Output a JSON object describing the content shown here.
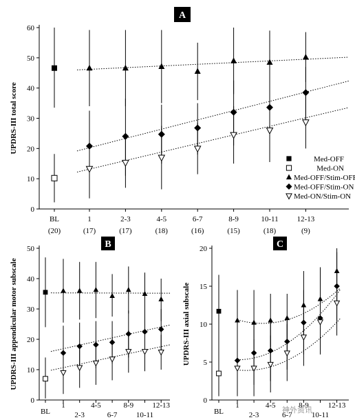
{
  "chart_data": [
    {
      "type": "scatter",
      "panel_label": "A",
      "ylabel": "UPDRS-III total score",
      "ylim": [
        0,
        60
      ],
      "yticks": [
        0,
        10,
        20,
        30,
        40,
        50,
        60
      ],
      "grid": false,
      "legend_position": "bottom-right",
      "categories": [
        {
          "label": "BL",
          "sub": "(20)"
        },
        {
          "label": "1",
          "sub": "(17)"
        },
        {
          "label": "2-3",
          "sub": "(17)"
        },
        {
          "label": "4-5",
          "sub": "(18)"
        },
        {
          "label": "6-7",
          "sub": "(16)"
        },
        {
          "label": "8-9",
          "sub": "(15)"
        },
        {
          "label": "10-11",
          "sub": "(18)"
        },
        {
          "label": "12-13",
          "sub": "(9)"
        }
      ],
      "series": [
        {
          "name": "Med-OFF",
          "marker": "square-filled",
          "points": [
            {
              "x": "BL",
              "y": 46.6,
              "lo": 33.5,
              "hi": 60.0
            }
          ]
        },
        {
          "name": "Med-ON",
          "marker": "square-open",
          "points": [
            {
              "x": "BL",
              "y": 10.2,
              "lo": 2.2,
              "hi": 18.2
            }
          ]
        },
        {
          "name": "Med-OFF/Stim-OFF",
          "marker": "triangle-up-filled",
          "points": [
            {
              "x": "1",
              "y": 46.6,
              "lo": 34.0,
              "hi": 59.2
            },
            {
              "x": "2-3",
              "y": 46.6,
              "lo": 34.0,
              "hi": 59.2
            },
            {
              "x": "4-5",
              "y": 47.1,
              "lo": 35.0,
              "hi": 59.2
            },
            {
              "x": "6-7",
              "y": 45.5,
              "lo": 36.0,
              "hi": 55.0
            },
            {
              "x": "8-9",
              "y": 49.0,
              "lo": 38.0,
              "hi": 60.0
            },
            {
              "x": "10-11",
              "y": 48.5,
              "lo": 38.0,
              "hi": 59.0
            },
            {
              "x": "12-13",
              "y": 50.2,
              "lo": 42.0,
              "hi": 58.5
            }
          ]
        },
        {
          "name": "Med-OFF/Stim-ON",
          "marker": "diamond-filled",
          "points": [
            {
              "x": "1",
              "y": 20.8,
              "lo": 9.5,
              "hi": 32.5
            },
            {
              "x": "2-3",
              "y": 24.0,
              "lo": 11.0,
              "hi": 36.5
            },
            {
              "x": "4-5",
              "y": 24.7,
              "lo": 15.0,
              "hi": 34.5
            },
            {
              "x": "6-7",
              "y": 26.8,
              "lo": 18.0,
              "hi": 35.0
            },
            {
              "x": "8-9",
              "y": 32.0,
              "lo": 21.0,
              "hi": 42.5
            },
            {
              "x": "10-11",
              "y": 33.6,
              "lo": 23.5,
              "hi": 43.5
            },
            {
              "x": "12-13",
              "y": 38.5,
              "lo": 30.0,
              "hi": 47.0
            }
          ]
        },
        {
          "name": "Med-ON/Stim-ON",
          "marker": "triangle-down-open",
          "points": [
            {
              "x": "1",
              "y": 13.3,
              "lo": 3.5,
              "hi": 24.0
            },
            {
              "x": "2-3",
              "y": 15.3,
              "lo": 7.0,
              "hi": 24.0
            },
            {
              "x": "4-5",
              "y": 17.0,
              "lo": 6.5,
              "hi": 27.5
            },
            {
              "x": "6-7",
              "y": 20.0,
              "lo": 11.5,
              "hi": 28.5
            },
            {
              "x": "8-9",
              "y": 24.5,
              "lo": 15.0,
              "hi": 34.0
            },
            {
              "x": "10-11",
              "y": 26.0,
              "lo": 15.5,
              "hi": 36.5
            },
            {
              "x": "12-13",
              "y": 28.7,
              "lo": 20.0,
              "hi": 37.5
            }
          ]
        }
      ],
      "trendlines": [
        {
          "series": "Med-OFF/Stim-OFF",
          "from": [
            1,
            46.0
          ],
          "to": [
            7,
            49.5
          ]
        },
        {
          "series": "Med-OFF/Stim-ON",
          "from": [
            1,
            19.2
          ],
          "to": [
            7,
            38.5
          ]
        },
        {
          "series": "Med-ON/Stim-ON",
          "from": [
            1,
            12.2
          ],
          "to": [
            7,
            30.0
          ]
        }
      ]
    },
    {
      "type": "scatter",
      "panel_label": "B",
      "ylabel": "UPDRS-III appendicular motor subscale",
      "ylim": [
        0,
        50
      ],
      "yticks": [
        0,
        10,
        20,
        30,
        40,
        50
      ],
      "grid": false,
      "categories": [
        "BL",
        "1",
        "2-3",
        "4-5",
        "6-7",
        "8-9",
        "10-11",
        "12-13"
      ],
      "series": [
        {
          "name": "Med-OFF",
          "marker": "square-filled",
          "points": [
            {
              "x": "BL",
              "y": 35.5,
              "lo": 24.0,
              "hi": 47.0
            }
          ]
        },
        {
          "name": "Med-ON",
          "marker": "square-open",
          "points": [
            {
              "x": "BL",
              "y": 7.0,
              "lo": 0.5,
              "hi": 14.0
            }
          ]
        },
        {
          "name": "Med-OFF/Stim-OFF",
          "marker": "triangle-up-filled",
          "points": [
            {
              "x": "1",
              "y": 36.0,
              "lo": 25.5,
              "hi": 46.5
            },
            {
              "x": "2-3",
              "y": 36.0,
              "lo": 26.5,
              "hi": 45.5
            },
            {
              "x": "4-5",
              "y": 36.3,
              "lo": 27.0,
              "hi": 45.5
            },
            {
              "x": "6-7",
              "y": 34.3,
              "lo": 27.5,
              "hi": 41.5
            },
            {
              "x": "8-9",
              "y": 36.3,
              "lo": 28.5,
              "hi": 44.0
            },
            {
              "x": "10-11",
              "y": 35.0,
              "lo": 28.0,
              "hi": 42.0
            },
            {
              "x": "12-13",
              "y": 33.2,
              "lo": 26.0,
              "hi": 40.0
            }
          ]
        },
        {
          "name": "Med-OFF/Stim-ON",
          "marker": "diamond-filled",
          "points": [
            {
              "x": "1",
              "y": 15.5,
              "lo": 7.0,
              "hi": 24.5
            },
            {
              "x": "2-3",
              "y": 17.7,
              "lo": 10.0,
              "hi": 25.5
            },
            {
              "x": "4-5",
              "y": 18.2,
              "lo": 10.5,
              "hi": 26.0
            },
            {
              "x": "6-7",
              "y": 19.0,
              "lo": 12.0,
              "hi": 26.0
            },
            {
              "x": "8-9",
              "y": 21.8,
              "lo": 14.0,
              "hi": 29.5
            },
            {
              "x": "10-11",
              "y": 22.5,
              "lo": 15.0,
              "hi": 30.0
            },
            {
              "x": "12-13",
              "y": 23.3,
              "lo": 16.5,
              "hi": 30.0
            }
          ]
        },
        {
          "name": "Med-ON/Stim-ON",
          "marker": "triangle-down-open",
          "points": [
            {
              "x": "1",
              "y": 9.0,
              "lo": 2.0,
              "hi": 16.5
            },
            {
              "x": "2-3",
              "y": 10.7,
              "lo": 4.0,
              "hi": 17.5
            },
            {
              "x": "4-5",
              "y": 12.2,
              "lo": 5.0,
              "hi": 19.5
            },
            {
              "x": "6-7",
              "y": 13.5,
              "lo": 6.5,
              "hi": 20.5
            },
            {
              "x": "8-9",
              "y": 16.0,
              "lo": 9.0,
              "hi": 23.0
            },
            {
              "x": "10-11",
              "y": 16.0,
              "lo": 9.5,
              "hi": 22.5
            },
            {
              "x": "12-13",
              "y": 15.8,
              "lo": 10.0,
              "hi": 21.5
            }
          ]
        }
      ],
      "trendlines": [
        {
          "series": "Med-OFF/Stim-OFF",
          "from": [
            1,
            35.3
          ],
          "to": [
            7,
            35.2
          ]
        },
        {
          "series": "Med-OFF/Stim-ON",
          "from": [
            1,
            16.0
          ],
          "to": [
            7,
            24.0
          ]
        },
        {
          "series": "Med-ON/Stim-ON",
          "from": [
            1,
            9.8
          ],
          "to": [
            7,
            17.5
          ]
        }
      ]
    },
    {
      "type": "scatter",
      "panel_label": "C",
      "ylabel": "UPDRS-III axial subscale",
      "ylim": [
        0,
        20
      ],
      "yticks": [
        0,
        5,
        10,
        15,
        20
      ],
      "grid": false,
      "categories": [
        "BL",
        "1",
        "2-3",
        "4-5",
        "6-7",
        "8-9",
        "10-11",
        "12-13"
      ],
      "series": [
        {
          "name": "Med-OFF",
          "marker": "square-filled",
          "points": [
            {
              "x": "BL",
              "y": 11.7,
              "lo": 7.0,
              "hi": 16.5
            }
          ]
        },
        {
          "name": "Med-ON",
          "marker": "square-open",
          "points": [
            {
              "x": "BL",
              "y": 3.5,
              "lo": 0.5,
              "hi": 7.0
            }
          ]
        },
        {
          "name": "Med-OFF/Stim-OFF",
          "marker": "triangle-up-filled",
          "points": [
            {
              "x": "1",
              "y": 10.5,
              "lo": 6.0,
              "hi": 14.5
            },
            {
              "x": "2-3",
              "y": 10.2,
              "lo": 6.0,
              "hi": 14.5
            },
            {
              "x": "4-5",
              "y": 10.5,
              "lo": 7.0,
              "hi": 14.0
            },
            {
              "x": "6-7",
              "y": 10.8,
              "lo": 8.0,
              "hi": 14.0
            },
            {
              "x": "8-9",
              "y": 12.5,
              "lo": 8.0,
              "hi": 17.0
            },
            {
              "x": "10-11",
              "y": 13.3,
              "lo": 9.0,
              "hi": 17.5
            },
            {
              "x": "12-13",
              "y": 17.0,
              "lo": 12.5,
              "hi": 20.0
            }
          ]
        },
        {
          "name": "Med-OFF/Stim-ON",
          "marker": "diamond-filled",
          "points": [
            {
              "x": "1",
              "y": 5.2,
              "lo": 1.0,
              "hi": 9.5
            },
            {
              "x": "2-3",
              "y": 6.2,
              "lo": 2.0,
              "hi": 10.5
            },
            {
              "x": "4-5",
              "y": 6.5,
              "lo": 2.5,
              "hi": 10.5
            },
            {
              "x": "6-7",
              "y": 7.7,
              "lo": 4.0,
              "hi": 11.0
            },
            {
              "x": "8-9",
              "y": 10.2,
              "lo": 6.0,
              "hi": 14.5
            },
            {
              "x": "10-11",
              "y": 10.8,
              "lo": 6.5,
              "hi": 15.0
            },
            {
              "x": "12-13",
              "y": 15.0,
              "lo": 10.5,
              "hi": 19.5
            }
          ]
        },
        {
          "name": "Med-ON/Stim-ON",
          "marker": "triangle-down-open",
          "points": [
            {
              "x": "1",
              "y": 4.2,
              "lo": 0.5,
              "hi": 8.0
            },
            {
              "x": "2-3",
              "y": 4.2,
              "lo": 0.5,
              "hi": 8.0
            },
            {
              "x": "4-5",
              "y": 4.7,
              "lo": 1.0,
              "hi": 8.5
            },
            {
              "x": "6-7",
              "y": 6.2,
              "lo": 2.5,
              "hi": 10.0
            },
            {
              "x": "8-9",
              "y": 8.3,
              "lo": 4.5,
              "hi": 12.0
            },
            {
              "x": "10-11",
              "y": 10.3,
              "lo": 6.0,
              "hi": 14.5
            },
            {
              "x": "12-13",
              "y": 12.8,
              "lo": 8.5,
              "hi": 17.0
            }
          ]
        }
      ],
      "trendcurves": [
        {
          "series": "Med-OFF/Stim-OFF",
          "a": 0.21,
          "v": 2.5,
          "k": 10.1,
          "x_from": 1,
          "x_to": 7.2
        },
        {
          "series": "Med-OFF/Stim-ON",
          "a": 0.24,
          "v": 1.0,
          "k": 5.3,
          "x_from": 1,
          "x_to": 7.2
        },
        {
          "series": "Med-ON/Stim-ON",
          "a": 0.21,
          "v": 1.5,
          "k": 3.9,
          "x_from": 1,
          "x_to": 7.2
        }
      ]
    }
  ],
  "watermark": "神外资讯"
}
